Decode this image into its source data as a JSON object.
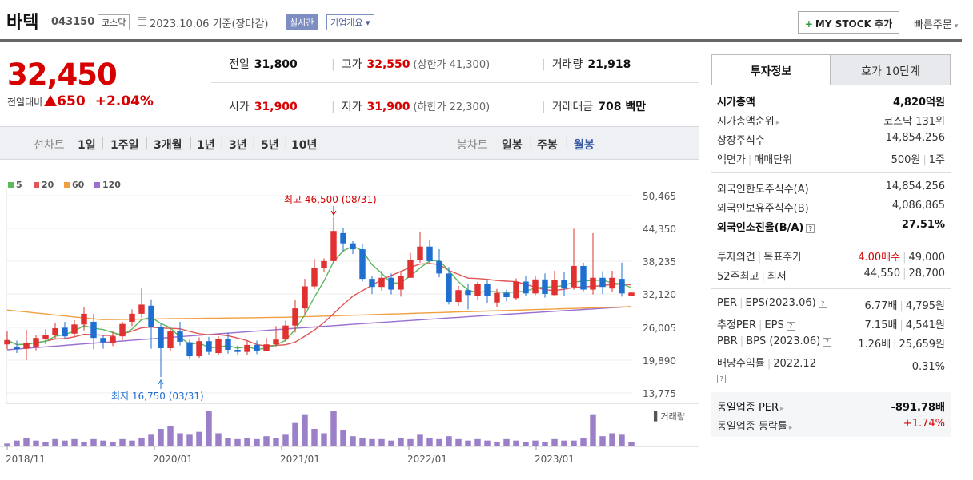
{
  "header": {
    "stock_name": "바텍",
    "stock_code": "043150",
    "market": "코스닥",
    "date_label": "2023.10.06  기준(장마감)",
    "realtime_label": "실시간",
    "company_overview_label": "기업개요 ▾",
    "my_stock_label": "MY STOCK 추가",
    "quick_order_label": "빠른주문"
  },
  "price": {
    "current": "32,450",
    "change_label": "전일대비",
    "change_amount": "650",
    "change_rate": "+2.04%"
  },
  "quotes": {
    "prev_close_label": "전일",
    "prev_close": "31,800",
    "high_label": "고가",
    "high": "32,550",
    "upper_limit": "(상한가 41,300)",
    "volume_label": "거래량",
    "volume": "21,918",
    "open_label": "시가",
    "open": "31,900",
    "low_label": "저가",
    "low": "31,900",
    "lower_limit": "(하한가 22,300)",
    "amount_label": "거래대금",
    "amount": "708 백만"
  },
  "period_tabs": {
    "line_chart_label": "선차트",
    "line_items": [
      "1일",
      "1주일",
      "3개월",
      "1년",
      "3년",
      "5년",
      "10년"
    ],
    "candle_chart_label": "봉차트",
    "candle_items": [
      "일봉",
      "주봉",
      "월봉"
    ],
    "selected": "월봉"
  },
  "chart_legend": [
    {
      "label": "5",
      "color": "#5cb85c"
    },
    {
      "label": "20",
      "color": "#e05555"
    },
    {
      "label": "60",
      "color": "#f0a040"
    },
    {
      "label": "120",
      "color": "#9b6fd0"
    }
  ],
  "chart_data": {
    "type": "candlestick",
    "y_ticks": [
      "50,465",
      "44,350",
      "38,235",
      "32,120",
      "26,005",
      "19,890",
      "13,775"
    ],
    "x_ticks": [
      "2018/11",
      "2020/01",
      "2021/01",
      "2022/01",
      "2023/01"
    ],
    "max_annotation": "최고 46,500 (08/31)",
    "min_annotation": "최저 16,750 (03/31)",
    "volume_label": "거래량"
  },
  "info_panel": {
    "tab_active": "투자정보",
    "tab_other": "호가 10단계",
    "rows_1": [
      {
        "k": "시가총액",
        "v": "4,820억원",
        "bold": true
      },
      {
        "k": "시가총액순위",
        "v": "코스닥 131위",
        "arrow": true
      },
      {
        "k": "상장주식수",
        "v": "14,854,256"
      },
      {
        "k": "액면가",
        "k2": "매매단위",
        "v": "500원",
        "v2": "1주"
      }
    ],
    "rows_2": [
      {
        "k": "외국인한도주식수(A)",
        "v": "14,854,256"
      },
      {
        "k": "외국인보유주식수(B)",
        "v": "4,086,865"
      },
      {
        "k": "외국인소진율(B/A)",
        "v": "27.51%",
        "bold": true,
        "help": true
      }
    ],
    "opinion_label": "투자의견",
    "target_label": "목표주가",
    "opinion_value": "4.00매수",
    "target_value": "49,000",
    "week52_label": "52주최고",
    "week52_low_label": "최저",
    "week52_high": "44,550",
    "week52_low": "28,700",
    "per_label": "PER",
    "eps_label": "EPS(2023.06)",
    "per": "6.77배",
    "eps": "4,795원",
    "est_per_label": "추정PER",
    "est_eps_label": "EPS",
    "est_per": "7.15배",
    "est_eps": "4,541원",
    "pbr_label": "PBR",
    "bps_label": "BPS (2023.06)",
    "pbr": "1.26배",
    "bps": "25,659원",
    "div_label": "배당수익률",
    "div_date": "2022.12",
    "div": "0.31%",
    "ind_per_label": "동일업종 PER",
    "ind_per": "-891.78배",
    "ind_rate_label": "동일업종 등락률",
    "ind_rate": "+1.74%"
  }
}
